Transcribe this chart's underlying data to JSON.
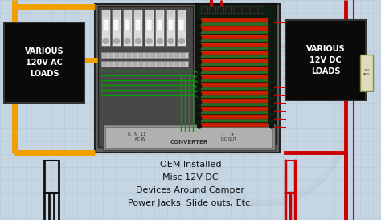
{
  "bg_color": "#c5d5e2",
  "grid_color": "#b5c8d8",
  "title_lines": [
    "OEM Installed",
    "Misc 12V DC",
    "Devices Around Camper",
    "Power Jacks, Slide outs, Etc."
  ],
  "ac_label": "VARIOUS\n120V AC\nLOADS",
  "dc_label": "VARIOUS\n12V DC\nLOADS",
  "converter_label": "CONVERTER",
  "ac_in_label": "G   N   L1\n     AC IN",
  "dc_out_label": "-       +\n  DC OUT",
  "panel_bg": "#606060",
  "panel_border": "#303030",
  "box_bg": "#0a0a0a",
  "breaker_bg": "#dcdcdc",
  "breaker_border": "#888888",
  "orange_wire": "#f0a000",
  "red_wire": "#cc0000",
  "green_wire": "#00a000",
  "black_wire": "#111111",
  "white_color": "#ffffff",
  "fuse_green": "#2a6e2a",
  "fuse_red": "#cc2000",
  "conv_bg": "#909090",
  "conv_inner": "#b0b0b0"
}
